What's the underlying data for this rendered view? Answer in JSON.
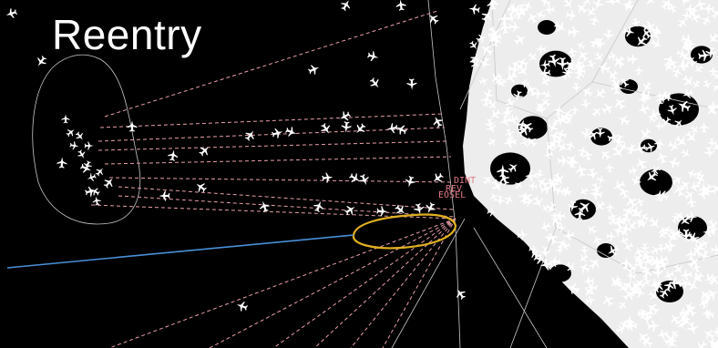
{
  "slide": {
    "title": "Reentry"
  },
  "map": {
    "fixes": [
      "DINT",
      "REV",
      "EOSEL"
    ],
    "colors": {
      "background": "#000000",
      "route_dashed": "#e8a0a8",
      "boundary": "#c8c8c8",
      "debris_zone": "#e0b020",
      "trajectory": "#4a90d8",
      "aircraft": "#ffffff",
      "fix_label": "#e07a86"
    },
    "icons": [
      "aircraft-icon"
    ]
  }
}
